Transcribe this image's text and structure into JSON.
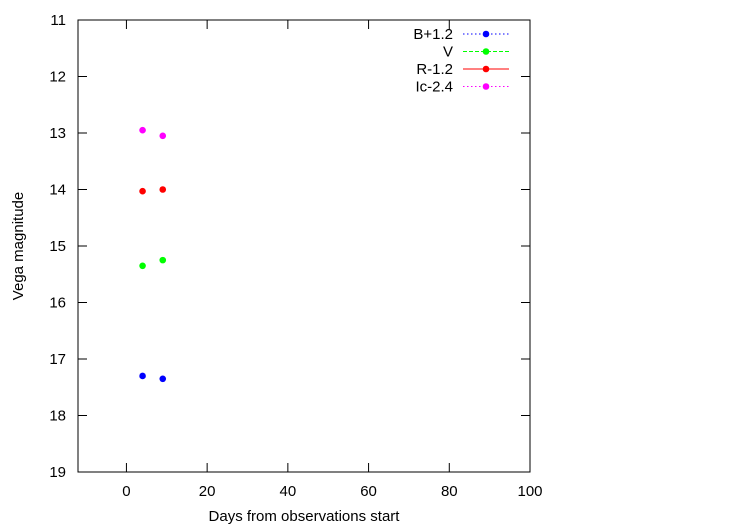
{
  "chart_data": {
    "type": "scatter",
    "title": "",
    "xlabel": "Days from observations start",
    "ylabel": "Vega magnitude",
    "xlim": [
      -12,
      100
    ],
    "ylim": [
      11,
      19
    ],
    "y_inverted": true,
    "xticks": [
      0,
      20,
      40,
      60,
      80,
      100
    ],
    "xtick_labels": [
      "0",
      "20",
      "40",
      "60",
      "80",
      "100"
    ],
    "yticks": [
      11,
      12,
      13,
      14,
      15,
      16,
      17,
      18,
      19
    ],
    "ytick_labels": [
      "11",
      "12",
      "13",
      "14",
      "15",
      "16",
      "17",
      "18",
      "19"
    ],
    "grid": false,
    "legend_position": "top-right",
    "series": [
      {
        "name": "B+1.2",
        "color": "#0000ff",
        "line_style": "dotted",
        "points": [
          {
            "x": 4,
            "y": 17.3
          },
          {
            "x": 9,
            "y": 17.35
          }
        ]
      },
      {
        "name": "V",
        "color": "#00ff00",
        "line_style": "dashed",
        "points": [
          {
            "x": 4,
            "y": 15.35
          },
          {
            "x": 9,
            "y": 15.25
          }
        ]
      },
      {
        "name": "R-1.2",
        "color": "#ff0000",
        "line_style": "solid",
        "points": [
          {
            "x": 4,
            "y": 14.03
          },
          {
            "x": 9,
            "y": 14.0
          }
        ]
      },
      {
        "name": "Ic-2.4",
        "color": "#ff00ff",
        "line_style": "dotted",
        "points": [
          {
            "x": 4,
            "y": 12.95
          },
          {
            "x": 9,
            "y": 13.05
          }
        ]
      }
    ]
  }
}
